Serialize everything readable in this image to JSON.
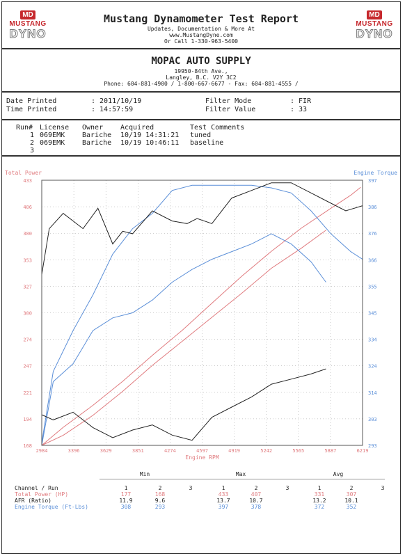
{
  "header": {
    "logo_md": "MD",
    "logo_word1": "MUSTANG",
    "logo_word2": "DYNO",
    "title": "Mustang Dynamometer Test Report",
    "sub1": "Updates, Documentation & More At",
    "sub2": "www.MustangDyne.com",
    "sub3": "Or Call 1-330-963-5400"
  },
  "shop": {
    "name": "MOPAC AUTO SUPPLY",
    "addr1": "19950-84th Ave.,",
    "addr2": "Langley, B.C.  V2Y 3C2",
    "phone": "Phone: 604-881-4900 / 1-800-667-6677 - Fax: 604-881-4555 /"
  },
  "info": {
    "date_label": "Date Printed",
    "date_value": ": 2011/10/19",
    "time_label": "Time Printed",
    "time_value": ": 14:57:59",
    "filter_mode_label": "Filter Mode",
    "filter_mode_value": ": FIR",
    "filter_value_label": "Filter Value",
    "filter_value_value": ": 33"
  },
  "runs": {
    "headers": [
      "Run#",
      "License",
      "Owner",
      "Acquired",
      "Test Comments"
    ],
    "rows": [
      [
        "1",
        "069EMK",
        "Bariche",
        "10/19 14:31:21",
        "tuned"
      ],
      [
        "2",
        "069EMK",
        "Bariche",
        "10/19 10:46:11",
        "baseline"
      ],
      [
        "3",
        "",
        "",
        "",
        ""
      ]
    ]
  },
  "colors": {
    "power": "#e07b7f",
    "torque": "#5b8fd8",
    "afr": "#222222",
    "axis": "#555555"
  },
  "chart_data": {
    "type": "line",
    "xlabel": "Engine RPM",
    "ylabel_left": "Total Power",
    "ylabel_right": "Engine Torque",
    "xlim": [
      2984,
      6219
    ],
    "ylim_left": [
      168,
      433
    ],
    "ylim_right": [
      293,
      397
    ],
    "x_ticks": [
      "2984",
      "3396",
      "3629",
      "3851",
      "4274",
      "4597",
      "4919",
      "5242",
      "5565",
      "5887",
      "6219"
    ],
    "y_left_ticks": [
      "433",
      "406",
      "380",
      "353",
      "327",
      "300",
      "274",
      "247",
      "221",
      "194",
      "168"
    ],
    "y_right_ticks": [
      "397",
      "386",
      "376",
      "366",
      "355",
      "345",
      "334",
      "324",
      "314",
      "303",
      "293"
    ],
    "series": [
      {
        "axis": "left",
        "style": "power",
        "x": [
          2984,
          3200,
          3500,
          3800,
          4100,
          4400,
          4700,
          5000,
          5300,
          5600,
          5900,
          6100,
          6200
        ],
        "y": [
          168,
          186,
          208,
          232,
          258,
          283,
          310,
          337,
          362,
          385,
          405,
          418,
          426
        ]
      },
      {
        "axis": "left",
        "style": "power",
        "x": [
          2984,
          3200,
          3500,
          3800,
          4100,
          4400,
          4700,
          5000,
          5300,
          5600,
          5850
        ],
        "y": [
          168,
          178,
          198,
          222,
          248,
          272,
          296,
          320,
          345,
          365,
          383
        ]
      },
      {
        "axis": "right",
        "style": "torque",
        "x": [
          2984,
          3100,
          3300,
          3500,
          3700,
          3900,
          4100,
          4300,
          4500,
          4700,
          4900,
          5100,
          5300,
          5500,
          5700,
          5900,
          6100,
          6219
        ],
        "y": [
          294,
          322,
          338,
          352,
          368,
          378,
          384,
          393,
          395,
          395,
          395,
          395,
          394,
          392,
          385,
          376,
          369,
          366
        ]
      },
      {
        "axis": "right",
        "style": "torque",
        "x": [
          2984,
          3100,
          3300,
          3500,
          3700,
          3900,
          4100,
          4300,
          4500,
          4700,
          4900,
          5100,
          5300,
          5500,
          5700,
          5850
        ],
        "y": [
          293,
          318,
          325,
          338,
          343,
          345,
          350,
          357,
          362,
          366,
          369,
          372,
          376,
          372,
          365,
          357
        ]
      },
      {
        "axis": "right",
        "style": "afr",
        "x": [
          2984,
          3060,
          3200,
          3400,
          3550,
          3700,
          3800,
          3900,
          4100,
          4300,
          4450,
          4550,
          4700,
          4900,
          5100,
          5300,
          5500,
          5700,
          5900,
          6050,
          6219
        ],
        "y": [
          360,
          378,
          384,
          378,
          386,
          372,
          377,
          376,
          385,
          381,
          380,
          382,
          380,
          390,
          393,
          396,
          396,
          392,
          388,
          385,
          387
        ]
      },
      {
        "axis": "right",
        "style": "afr",
        "x": [
          2984,
          3100,
          3300,
          3500,
          3700,
          3900,
          4100,
          4300,
          4500,
          4700,
          4900,
          5100,
          5300,
          5500,
          5700,
          5850
        ],
        "y": [
          305,
          303,
          306,
          300,
          296,
          299,
          301,
          297,
          295,
          304,
          308,
          312,
          317,
          319,
          321,
          323
        ]
      }
    ]
  },
  "stats": {
    "groups": [
      "Min",
      "Max",
      "Avg"
    ],
    "col_header": "Channel / Run",
    "run_nums": [
      "1",
      "2",
      "3",
      "1",
      "2",
      "3",
      "1",
      "2",
      "3"
    ],
    "rows": [
      {
        "label": "Total Power (HP)",
        "values": [
          "177",
          "168",
          "",
          "433",
          "407",
          "",
          "331",
          "307",
          ""
        ]
      },
      {
        "label": "AFR (Ratio)",
        "values": [
          "11.9",
          "9.6",
          "",
          "13.7",
          "10.7",
          "",
          "13.2",
          "10.1",
          ""
        ]
      },
      {
        "label": "Engine Torque (Ft-Lbs)",
        "values": [
          "308",
          "293",
          "",
          "397",
          "378",
          "",
          "372",
          "352",
          ""
        ]
      }
    ]
  }
}
